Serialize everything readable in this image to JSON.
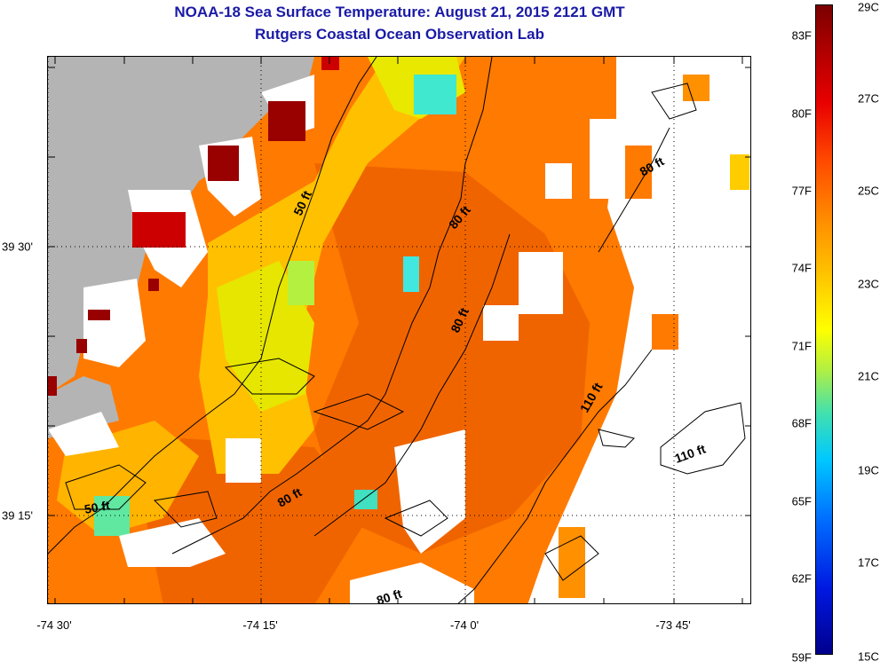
{
  "header": {
    "title": "NOAA-18 Sea Surface Temperature:  August 21, 2015 2121 GMT",
    "subtitle": "Rutgers Coastal Ocean Observation Lab"
  },
  "map": {
    "longitude_labels": [
      "-74 30'",
      "-74 15'",
      "-74 0'",
      "-73 45'"
    ],
    "latitude_labels": [
      "39 30'",
      "39 15'"
    ],
    "depth_labels": [
      "50 ft",
      "50 ft",
      "80 ft",
      "80 ft",
      "80 ft",
      "80 ft",
      "80 ft",
      "110 ft",
      "110 ft"
    ],
    "colors": {
      "land": "#b4b4b4",
      "cloud": "#ffffff",
      "warm": "#ff7a00",
      "hot": "#cc0000",
      "cool": "#ffff00",
      "cold": "#00e0e0"
    }
  },
  "colorbar": {
    "fahrenheit_labels": [
      "83F",
      "80F",
      "77F",
      "74F",
      "71F",
      "68F",
      "65F",
      "62F",
      "59F"
    ],
    "celsius_labels": [
      "29C",
      "27C",
      "25C",
      "23C",
      "21C",
      "19C",
      "17C",
      "15C"
    ]
  }
}
